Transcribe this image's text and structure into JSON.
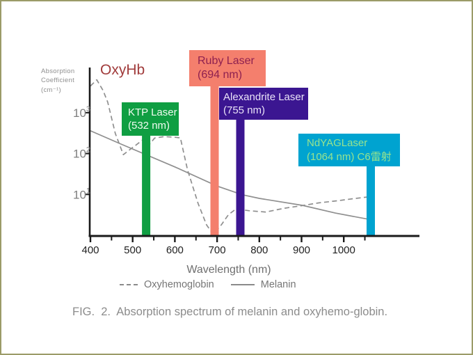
{
  "page": {
    "border_color": "#9b9b68",
    "background": "#ffffff"
  },
  "figure": {
    "oxyhb_label": "OxyHb",
    "oxyhb_color": "#a13c3c",
    "y_axis_label_lines": [
      "Absorption",
      "Coefficient",
      "(cm⁻¹)"
    ],
    "x_axis_label": "Wavelength (nm)",
    "legend": [
      {
        "label": "Oxyhemoglobin",
        "style": "dashed"
      },
      {
        "label": "Melanin",
        "style": "solid"
      }
    ],
    "caption": "FIG.  2.  Absorption spectrum of melanin and oxyhemo-globin."
  },
  "lasers": [
    {
      "name": "KTP Laser",
      "detail": "(532 nm)",
      "wavelength_nm": 532,
      "box_color": "#0f9e42",
      "text_color": "#f0fbf0"
    },
    {
      "name": "Ruby Laser",
      "detail": "(694 nm)",
      "wavelength_nm": 694,
      "box_color": "#f47f6d",
      "text_color": "#8e2050"
    },
    {
      "name": "Alexandrite Laser",
      "detail": "(755 nm)",
      "wavelength_nm": 755,
      "box_color": "#3b1691",
      "text_color": "#eae3f8"
    },
    {
      "name": "NdYAGLaser",
      "detail": "(1064 nm) C6雷射",
      "wavelength_nm": 1064,
      "box_color": "#00a3d0",
      "text_color": "#98e48e"
    }
  ],
  "chart_data": {
    "type": "line",
    "title": "Absorption spectrum of melanin and oxyhemoglobin",
    "xlabel": "Wavelength (nm)",
    "ylabel": "Absorption Coefficient (cm⁻¹)",
    "x_range": [
      400,
      1180
    ],
    "y_scale": "log",
    "ylim": [
      1,
      10000
    ],
    "grid": false,
    "legend_position": "below",
    "x_ticks_major": [
      400,
      500,
      600,
      700,
      800,
      900,
      1000
    ],
    "x_ticks_minor": [
      450,
      550,
      650,
      750,
      850,
      950,
      1050
    ],
    "y_ticks": [
      {
        "value": 1000,
        "base": "10",
        "exp": "3"
      },
      {
        "value": 100,
        "base": "10",
        "exp": "2"
      },
      {
        "value": 10,
        "base": "10",
        "exp": "1"
      }
    ],
    "axis_color": "#1a1a1a",
    "curve_color": "#8f8f8f",
    "x_tick_label_color": "#1f1f1f",
    "y_tick_label_color": "#7e7e7e",
    "series": [
      {
        "name": "Oxyhemoglobin",
        "style": "dashed",
        "x": [
          400,
          415,
          430,
          441,
          459,
          478,
          491,
          508,
          523,
          536,
          552,
          575,
          600,
          613,
          630,
          655,
          675,
          691,
          710,
          727,
          745,
          775,
          815,
          860,
          900,
          940,
          985,
          1020,
          1055
        ],
        "y": [
          4500,
          6400,
          3500,
          1800,
          310,
          94,
          120,
          162,
          214,
          150,
          240,
          260,
          250,
          243,
          40,
          6,
          1.8,
          1.05,
          1.8,
          3.2,
          4.4,
          4.0,
          3.7,
          4.6,
          5.3,
          6.2,
          7.0,
          7.8,
          8.6
        ]
      },
      {
        "name": "Melanin",
        "style": "solid",
        "x": [
          400,
          473,
          600,
          700,
          760,
          800,
          902,
          980,
          1055
        ],
        "y": [
          360,
          170,
          47,
          16,
          9.8,
          8.0,
          5.4,
          3.5,
          2.5
        ]
      }
    ]
  }
}
